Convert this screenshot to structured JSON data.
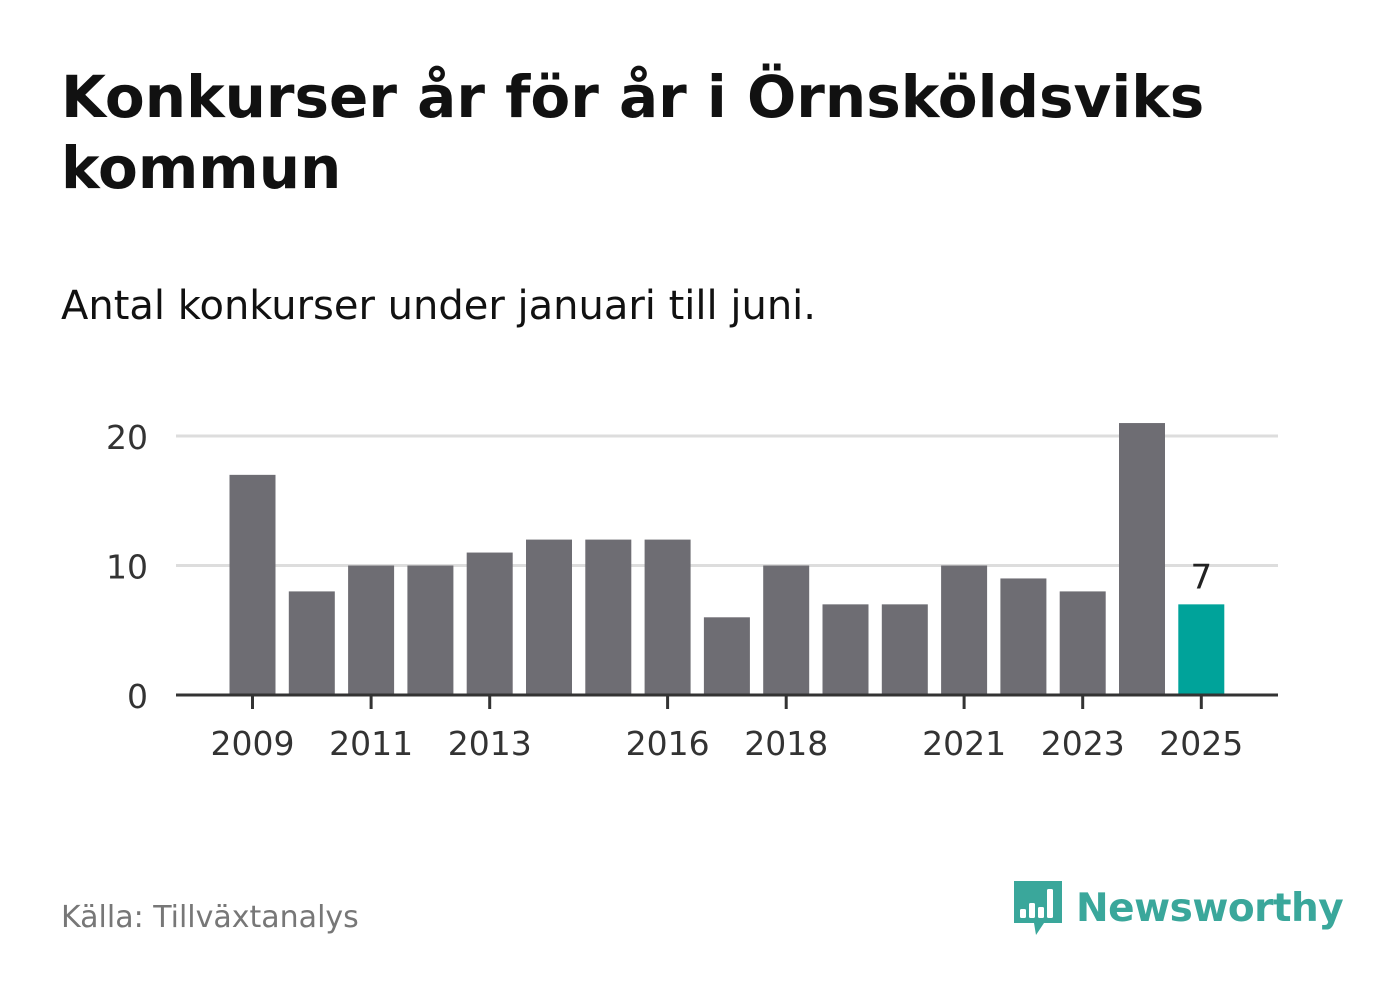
{
  "header": {
    "title": "Konkurser år för år i Örnsköldsviks kommun",
    "subtitle": "Antal konkurser under januari till juni."
  },
  "footer": {
    "source": "Källa: Tillväxtanalys",
    "brand": "Newsworthy"
  },
  "colors": {
    "bar": "#6e6d73",
    "highlight": "#00a39a",
    "grid": "#dddddd",
    "axis": "#333333",
    "brand": "#3aa79b"
  },
  "icons": {
    "logo": "bar-chart-speech-bubble-icon"
  },
  "chart_data": {
    "type": "bar",
    "categories": [
      "2009",
      "2010",
      "2011",
      "2012",
      "2013",
      "2014",
      "2015",
      "2016",
      "2017",
      "2018",
      "2019",
      "2020",
      "2021",
      "2022",
      "2023",
      "2024",
      "2025"
    ],
    "values": [
      17,
      8,
      10,
      10,
      11,
      12,
      12,
      12,
      6,
      10,
      7,
      7,
      10,
      9,
      8,
      21,
      7
    ],
    "tick_labels": [
      "2009",
      "2011",
      "2013",
      "2016",
      "2018",
      "2021",
      "2023",
      "2025"
    ],
    "yticks": [
      "0",
      "10",
      "20"
    ],
    "ylim": [
      0,
      20
    ],
    "highlight_index": 16,
    "highlight_label": "7",
    "grid": true
  }
}
